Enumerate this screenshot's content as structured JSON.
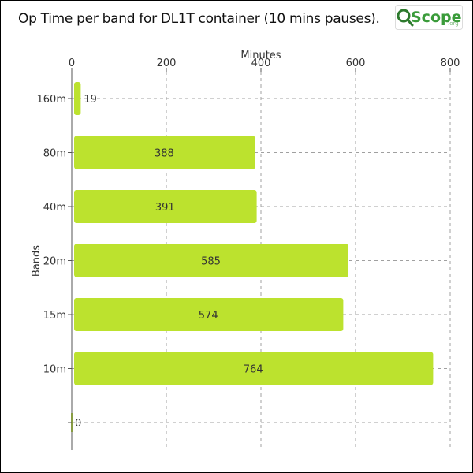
{
  "chart_data": {
    "type": "bar",
    "orientation": "horizontal",
    "title": "Op Time per band for DL1T container (10 mins pauses).",
    "xlabel": "Minutes",
    "ylabel": "Bands",
    "xlim": [
      0,
      800
    ],
    "xticks": [
      0,
      200,
      400,
      600,
      800
    ],
    "categories": [
      "160m",
      "80m",
      "40m",
      "20m",
      "15m",
      "10m",
      ""
    ],
    "values": [
      19,
      388,
      391,
      585,
      574,
      764,
      0
    ],
    "data_labels": [
      "19",
      "388",
      "391",
      "585",
      "574",
      "764",
      "0"
    ],
    "grid": true,
    "bar_color": "#bce22e",
    "label_color": "#333333"
  },
  "logo": {
    "text": "Scope",
    "suffix": ".org",
    "color": "#3a9b3a"
  }
}
